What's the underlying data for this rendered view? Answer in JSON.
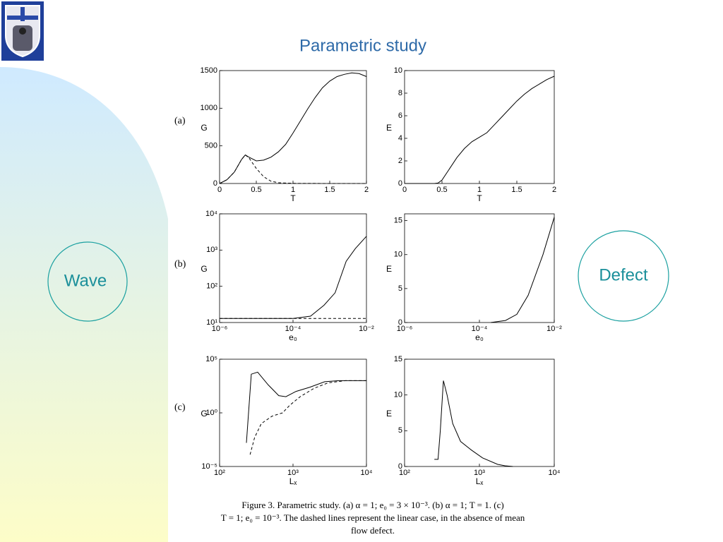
{
  "title": "Parametric study",
  "panels": [
    "(a)",
    "(b)",
    "(c)"
  ],
  "labels": [
    "Wave",
    "Defect"
  ],
  "caption": [
    "Figure 3. Parametric study. (a) α = 1;  e₀ = 3 × 10⁻³. (b) α = 1;  T = 1. (c)",
    "T = 1;  e₀ = 10⁻³. The dashed lines represent the linear case, in the absence of mean",
    "flow defect."
  ],
  "chart_data": [
    {
      "type": "line",
      "ylabel": "G",
      "xlabel": "T",
      "xlim": [
        0,
        2
      ],
      "ylim": [
        0,
        1500
      ],
      "xticks": [
        0,
        0.5,
        1,
        1.5,
        2
      ],
      "yticks": [
        0,
        500,
        1000,
        1500
      ],
      "series": [
        {
          "style": "solid",
          "color": "#000000",
          "x": [
            0,
            0.1,
            0.2,
            0.3,
            0.35,
            0.4,
            0.5,
            0.6,
            0.7,
            0.8,
            0.9,
            1.0,
            1.1,
            1.2,
            1.3,
            1.4,
            1.5,
            1.6,
            1.7,
            1.8,
            1.9,
            2.0
          ],
          "values": [
            0,
            50,
            150,
            320,
            380,
            350,
            300,
            310,
            350,
            420,
            520,
            670,
            830,
            990,
            1140,
            1270,
            1360,
            1420,
            1450,
            1470,
            1460,
            1420
          ]
        },
        {
          "style": "dashed",
          "color": "#000000",
          "x": [
            0,
            0.1,
            0.2,
            0.3,
            0.35,
            0.4,
            0.5,
            0.6,
            0.7,
            0.8,
            1.0,
            1.5,
            2.0
          ],
          "values": [
            0,
            50,
            150,
            320,
            380,
            340,
            200,
            90,
            30,
            10,
            2,
            0,
            0
          ]
        }
      ]
    },
    {
      "type": "line",
      "ylabel": "E",
      "xlabel": "T",
      "xlim": [
        0,
        2
      ],
      "ylim": [
        0,
        10
      ],
      "xticks": [
        0,
        0.5,
        1,
        1.5,
        2
      ],
      "yticks": [
        0,
        2,
        4,
        6,
        8,
        10
      ],
      "series": [
        {
          "style": "solid",
          "color": "#000000",
          "x": [
            0,
            0.4,
            0.45,
            0.5,
            0.6,
            0.7,
            0.8,
            0.9,
            1.0,
            1.1,
            1.2,
            1.3,
            1.4,
            1.5,
            1.6,
            1.7,
            1.8,
            1.9,
            2.0
          ],
          "values": [
            0,
            0,
            0.05,
            0.3,
            1.3,
            2.3,
            3.1,
            3.7,
            4.1,
            4.5,
            5.2,
            5.9,
            6.6,
            7.3,
            7.9,
            8.4,
            8.8,
            9.2,
            9.5
          ]
        }
      ]
    },
    {
      "type": "line",
      "ylabel": "G",
      "xlabel": "e₀",
      "xscale": "log",
      "yscale": "log",
      "xlim": [
        1e-06,
        0.01
      ],
      "ylim": [
        10,
        10000
      ],
      "xticks": [
        {
          "value": 1e-06,
          "label": "10⁻⁶"
        },
        {
          "value": 0.0001,
          "label": "10⁻⁴"
        },
        {
          "value": 0.01,
          "label": "10⁻²"
        }
      ],
      "yticks": [
        {
          "value": 10,
          "label": "10¹"
        },
        {
          "value": 100,
          "label": "10²"
        },
        {
          "value": 1000,
          "label": "10³"
        },
        {
          "value": 10000,
          "label": "10⁴"
        }
      ],
      "series": [
        {
          "style": "solid",
          "color": "#000000",
          "x": [
            1e-06,
            1e-05,
            0.0001,
            0.0003,
            0.0007,
            0.0014,
            0.0028,
            0.005,
            0.01
          ],
          "values": [
            13,
            13,
            13,
            15,
            30,
            66,
            490,
            1100,
            2400
          ]
        },
        {
          "style": "dashed",
          "color": "#000000",
          "x": [
            1e-06,
            0.01
          ],
          "values": [
            13,
            13
          ]
        }
      ]
    },
    {
      "type": "line",
      "ylabel": "E",
      "xlabel": "e₀",
      "xscale": "log",
      "xlim": [
        1e-06,
        0.01
      ],
      "ylim": [
        0,
        16
      ],
      "xticks": [
        {
          "value": 1e-06,
          "label": "10⁻⁶"
        },
        {
          "value": 0.0001,
          "label": "10⁻⁴"
        },
        {
          "value": 0.01,
          "label": "10⁻²"
        }
      ],
      "yticks": [
        0,
        5,
        10,
        15
      ],
      "series": [
        {
          "style": "solid",
          "color": "#000000",
          "x": [
            0.0002,
            0.0005,
            0.001,
            0.002,
            0.005,
            0.01
          ],
          "values": [
            0,
            0.3,
            1.2,
            4,
            10,
            15.5
          ]
        }
      ]
    },
    {
      "type": "line",
      "ylabel": "G",
      "xlabel": "Lₓ",
      "xscale": "log",
      "yscale": "log",
      "xlim": [
        100,
        10000
      ],
      "ylim": [
        1e-05,
        100000
      ],
      "xticks": [
        {
          "value": 100,
          "label": "10²"
        },
        {
          "value": 1000,
          "label": "10³"
        },
        {
          "value": 10000,
          "label": "10⁴"
        }
      ],
      "yticks": [
        {
          "value": 1e-05,
          "label": "10⁻⁵"
        },
        {
          "value": 1,
          "label": "10⁰"
        },
        {
          "value": 100000,
          "label": "10⁵"
        }
      ],
      "series": [
        {
          "style": "solid",
          "color": "#000000",
          "x": [
            232,
            270,
            330,
            460,
            640,
            800,
            1100,
            1700,
            2700,
            4200,
            10000
          ],
          "values": [
            0.0016,
            4000,
            6300,
            400,
            40,
            32,
            100,
            250,
            800,
            1000,
            1000
          ]
        },
        {
          "style": "dashed",
          "color": "#000000",
          "x": [
            260,
            300,
            370,
            520,
            720,
            900,
            1250,
            1950,
            3000,
            5200,
            10000
          ],
          "values": [
            0.00013,
            0.005,
            0.1,
            0.5,
            1,
            5,
            32,
            200,
            630,
            1000,
            1000
          ]
        }
      ]
    },
    {
      "type": "line",
      "ylabel": "E",
      "xlabel": "Lₓ",
      "xscale": "log",
      "xlim": [
        100,
        10000
      ],
      "ylim": [
        0,
        15
      ],
      "xticks": [
        {
          "value": 100,
          "label": "10²"
        },
        {
          "value": 1000,
          "label": "10³"
        },
        {
          "value": 10000,
          "label": "10⁴"
        }
      ],
      "yticks": [
        0,
        5,
        10,
        15
      ],
      "series": [
        {
          "style": "solid",
          "color": "#000000",
          "x": [
            250,
            280,
            300,
            330,
            370,
            440,
            560,
            780,
            1100,
            1750,
            2200,
            2800
          ],
          "values": [
            1,
            1,
            5,
            12,
            10,
            6,
            3.5,
            2.3,
            1.2,
            0.3,
            0.1,
            0
          ]
        }
      ]
    }
  ]
}
